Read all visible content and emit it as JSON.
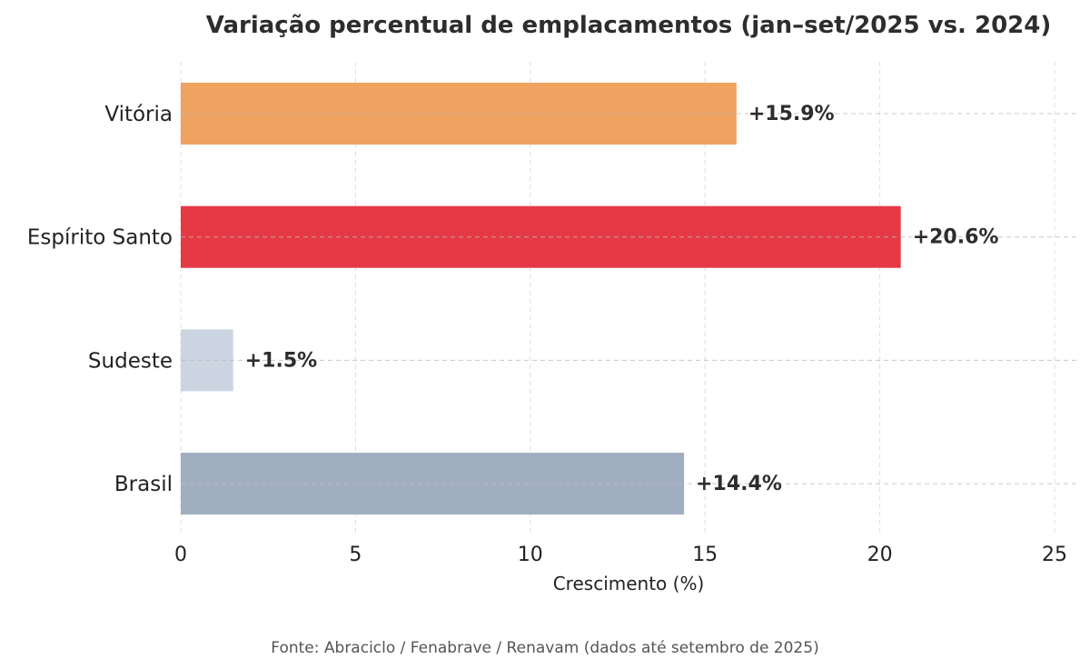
{
  "chart_data": {
    "type": "bar",
    "orientation": "horizontal",
    "title": "Variação percentual de emplacamentos (jan–set/2025 vs. 2024)",
    "xlabel": "Crescimento (%)",
    "ylabel": "",
    "xlim": [
      0,
      25
    ],
    "xticks": [
      "0",
      "5",
      "10",
      "15",
      "20",
      "25"
    ],
    "xtick_values": [
      0,
      5,
      10,
      15,
      20,
      25
    ],
    "categories": [
      "Vitória",
      "Espírito Santo",
      "Sudeste",
      "Brasil"
    ],
    "values": [
      15.9,
      20.6,
      1.5,
      14.4
    ],
    "data_labels": [
      "+15.9%",
      "+20.6%",
      "+1.5%",
      "+14.4%"
    ],
    "colors": [
      "#F0A261",
      "#E63946",
      "#CBD5E1",
      "#A0AEC0"
    ],
    "grid": true,
    "source": "Fonte: Abraciclo / Fenabrave / Renavam (dados até setembro de 2025)"
  }
}
